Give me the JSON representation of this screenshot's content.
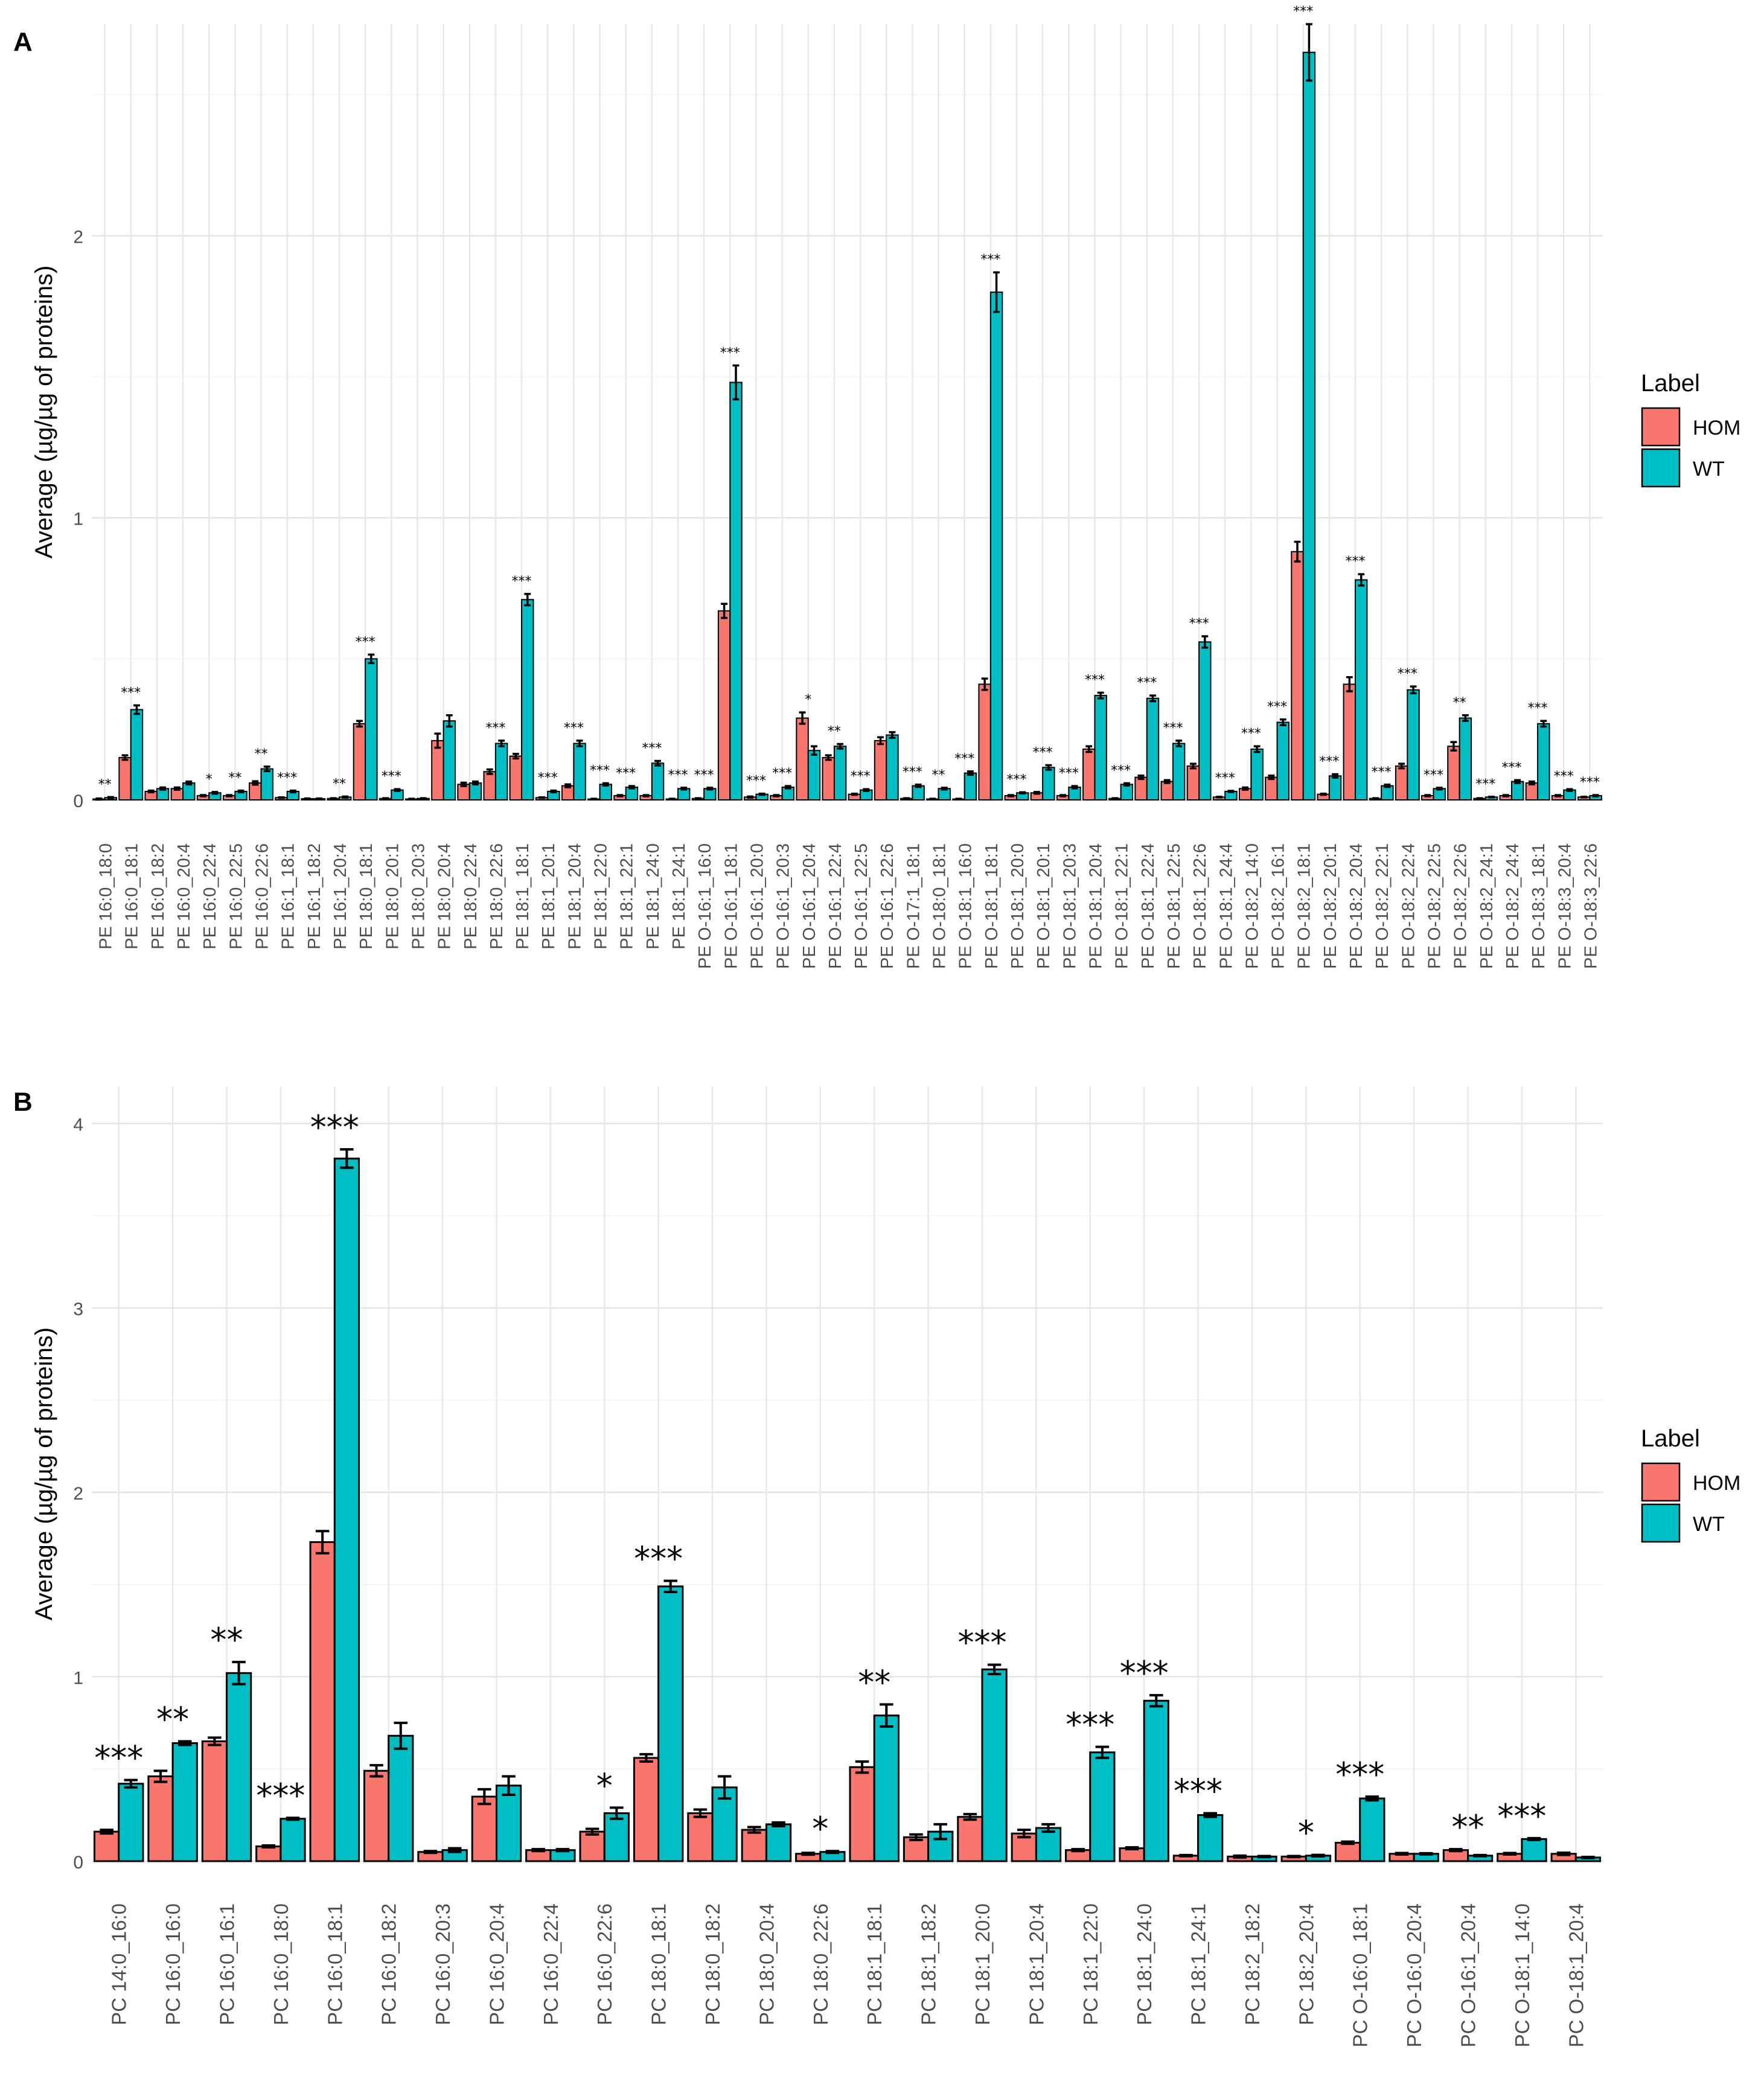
{
  "figure": {
    "panels": [
      "A",
      "B"
    ]
  },
  "chart_data": [
    {
      "type": "bar",
      "panel": "A",
      "ylabel": "Average (µg/µg of proteins)",
      "xlabel": "",
      "ylim": [
        0,
        2.75
      ],
      "y_ticks": [
        0,
        1,
        2
      ],
      "grid": true,
      "legend": {
        "title": "Label",
        "entries": [
          "HOM",
          "WT"
        ],
        "position": "right"
      },
      "colors": {
        "HOM": "#F8766D",
        "WT": "#00BFC4"
      },
      "categories": [
        "PE 16:0_18:0",
        "PE 16:0_18:1",
        "PE 16:0_18:2",
        "PE 16:0_20:4",
        "PE 16:0_22:4",
        "PE 16:0_22:5",
        "PE 16:0_22:6",
        "PE 16:1_18:1",
        "PE 16:1_18:2",
        "PE 16:1_20:4",
        "PE 18:0_18:1",
        "PE 18:0_20:1",
        "PE 18:0_20:3",
        "PE 18:0_20:4",
        "PE 18:0_22:4",
        "PE 18:0_22:6",
        "PE 18:1_18:1",
        "PE 18:1_20:1",
        "PE 18:1_20:4",
        "PE 18:1_22:0",
        "PE 18:1_22:1",
        "PE 18:1_24:0",
        "PE 18:1_24:1",
        "PE O-16:1_16:0",
        "PE O-16:1_18:1",
        "PE O-16:1_20:0",
        "PE O-16:1_20:3",
        "PE O-16:1_20:4",
        "PE O-16:1_22:4",
        "PE O-16:1_22:5",
        "PE O-16:1_22:6",
        "PE O-17:1_18:1",
        "PE O-18:0_18:1",
        "PE O-18:1_16:0",
        "PE O-18:1_18:1",
        "PE O-18:1_20:0",
        "PE O-18:1_20:1",
        "PE O-18:1_20:3",
        "PE O-18:1_20:4",
        "PE O-18:1_22:1",
        "PE O-18:1_22:4",
        "PE O-18:1_22:5",
        "PE O-18:1_22:6",
        "PE O-18:1_24:4",
        "PE O-18:2_14:0",
        "PE O-18:2_16:1",
        "PE O-18:2_18:1",
        "PE O-18:2_20:1",
        "PE O-18:2_20:4",
        "PE O-18:2_22:1",
        "PE O-18:2_22:4",
        "PE O-18:2_22:5",
        "PE O-18:2_22:6",
        "PE O-18:2_24:1",
        "PE O-18:2_24:4",
        "PE O-18:3_18:1",
        "PE O-18:3_20:4",
        "PE O-18:3_22:6"
      ],
      "series": [
        {
          "name": "HOM",
          "values": [
            0.003,
            0.15,
            0.03,
            0.04,
            0.015,
            0.015,
            0.06,
            0.008,
            0.004,
            0.005,
            0.27,
            0.005,
            0.003,
            0.21,
            0.055,
            0.1,
            0.155,
            0.008,
            0.05,
            0.003,
            0.015,
            0.015,
            0.003,
            0.005,
            0.67,
            0.01,
            0.015,
            0.29,
            0.15,
            0.02,
            0.21,
            0.005,
            0.003,
            0.003,
            0.41,
            0.015,
            0.025,
            0.015,
            0.18,
            0.005,
            0.08,
            0.065,
            0.12,
            0.01,
            0.04,
            0.08,
            0.88,
            0.02,
            0.41,
            0.005,
            0.12,
            0.015,
            0.19,
            0.005,
            0.015,
            0.06,
            0.015,
            0.01
          ],
          "errors": [
            0.002,
            0.008,
            0.003,
            0.004,
            0.002,
            0.002,
            0.006,
            0.001,
            0.001,
            0.001,
            0.01,
            0.001,
            0.001,
            0.025,
            0.006,
            0.008,
            0.008,
            0.001,
            0.005,
            0.001,
            0.002,
            0.002,
            0.001,
            0.001,
            0.025,
            0.002,
            0.002,
            0.02,
            0.008,
            0.002,
            0.012,
            0.001,
            0.001,
            0.001,
            0.02,
            0.002,
            0.003,
            0.002,
            0.01,
            0.001,
            0.006,
            0.005,
            0.008,
            0.001,
            0.004,
            0.006,
            0.035,
            0.002,
            0.025,
            0.001,
            0.008,
            0.002,
            0.015,
            0.001,
            0.002,
            0.005,
            0.002,
            0.001
          ]
        },
        {
          "name": "WT",
          "values": [
            0.008,
            0.32,
            0.04,
            0.06,
            0.025,
            0.03,
            0.11,
            0.03,
            0.004,
            0.01,
            0.5,
            0.035,
            0.005,
            0.28,
            0.06,
            0.2,
            0.71,
            0.03,
            0.2,
            0.055,
            0.045,
            0.13,
            0.04,
            0.04,
            1.48,
            0.02,
            0.045,
            0.175,
            0.19,
            0.035,
            0.23,
            0.05,
            0.04,
            0.095,
            1.8,
            0.025,
            0.115,
            0.045,
            0.37,
            0.055,
            0.36,
            0.2,
            0.56,
            0.03,
            0.18,
            0.275,
            2.65,
            0.085,
            0.78,
            0.05,
            0.39,
            0.04,
            0.29,
            0.01,
            0.065,
            0.27,
            0.035,
            0.015
          ],
          "errors": [
            0.002,
            0.015,
            0.004,
            0.005,
            0.003,
            0.003,
            0.008,
            0.003,
            0.001,
            0.002,
            0.015,
            0.003,
            0.001,
            0.02,
            0.005,
            0.01,
            0.02,
            0.003,
            0.01,
            0.004,
            0.004,
            0.008,
            0.003,
            0.003,
            0.06,
            0.002,
            0.004,
            0.015,
            0.008,
            0.003,
            0.01,
            0.004,
            0.003,
            0.006,
            0.07,
            0.002,
            0.008,
            0.004,
            0.01,
            0.004,
            0.01,
            0.01,
            0.02,
            0.002,
            0.01,
            0.01,
            0.1,
            0.006,
            0.02,
            0.004,
            0.012,
            0.003,
            0.01,
            0.001,
            0.005,
            0.01,
            0.003,
            0.002
          ]
        }
      ],
      "annotations": [
        "**",
        "***",
        "",
        "",
        "*",
        "**",
        "**",
        "***",
        "",
        "**",
        "***",
        "***",
        "",
        "",
        "",
        "***",
        "***",
        "***",
        "***",
        "***",
        "***",
        "***",
        "***",
        "***",
        "***",
        "***",
        "***",
        "*",
        "**",
        "***",
        "",
        "***",
        "**",
        "***",
        "***",
        "***",
        "***",
        "***",
        "***",
        "***",
        "***",
        "***",
        "***",
        "***",
        "***",
        "***",
        "***",
        "***",
        "***",
        "***",
        "***",
        "***",
        "**",
        "***",
        "***",
        "***",
        "***",
        "***"
      ]
    },
    {
      "type": "bar",
      "panel": "B",
      "ylabel": "Average (µg/µg of proteins)",
      "xlabel": "",
      "ylim": [
        0,
        4.2
      ],
      "y_ticks": [
        0,
        1,
        2,
        3,
        4
      ],
      "grid": true,
      "legend": {
        "title": "Label",
        "entries": [
          "HOM",
          "WT"
        ],
        "position": "right"
      },
      "colors": {
        "HOM": "#F8766D",
        "WT": "#00BFC4"
      },
      "categories": [
        "PC 14:0_16:0",
        "PC 16:0_16:0",
        "PC 16:0_16:1",
        "PC 16:0_18:0",
        "PC 16:0_18:1",
        "PC 16:0_18:2",
        "PC 16:0_20:3",
        "PC 16:0_20:4",
        "PC 16:0_22:4",
        "PC 16:0_22:6",
        "PC 18:0_18:1",
        "PC 18:0_18:2",
        "PC 18:0_20:4",
        "PC 18:0_22:6",
        "PC 18:1_18:1",
        "PC 18:1_18:2",
        "PC 18:1_20:0",
        "PC 18:1_20:4",
        "PC 18:1_22:0",
        "PC 18:1_24:0",
        "PC 18:1_24:1",
        "PC 18:2_18:2",
        "PC 18:2_20:4",
        "PC O-16:0_18:1",
        "PC O-16:0_20:4",
        "PC O-16:1_20:4",
        "PC O-18:1_14:0",
        "PC O-18:1_20:4"
      ],
      "series": [
        {
          "name": "HOM",
          "values": [
            0.16,
            0.46,
            0.65,
            0.08,
            1.73,
            0.49,
            0.05,
            0.35,
            0.06,
            0.16,
            0.56,
            0.26,
            0.17,
            0.04,
            0.51,
            0.13,
            0.24,
            0.15,
            0.06,
            0.07,
            0.03,
            0.025,
            0.025,
            0.1,
            0.04,
            0.06,
            0.04,
            0.04
          ],
          "errors": [
            0.01,
            0.03,
            0.02,
            0.005,
            0.06,
            0.03,
            0.005,
            0.04,
            0.005,
            0.015,
            0.02,
            0.02,
            0.015,
            0.005,
            0.03,
            0.015,
            0.015,
            0.02,
            0.005,
            0.005,
            0.003,
            0.005,
            0.003,
            0.006,
            0.004,
            0.005,
            0.004,
            0.006
          ]
        },
        {
          "name": "WT",
          "values": [
            0.42,
            0.64,
            1.02,
            0.23,
            3.81,
            0.68,
            0.06,
            0.41,
            0.06,
            0.26,
            1.49,
            0.4,
            0.2,
            0.05,
            0.79,
            0.16,
            1.04,
            0.18,
            0.59,
            0.87,
            0.25,
            0.025,
            0.03,
            0.34,
            0.04,
            0.03,
            0.12,
            0.02
          ],
          "errors": [
            0.02,
            0.01,
            0.06,
            0.005,
            0.05,
            0.07,
            0.01,
            0.05,
            0.005,
            0.03,
            0.03,
            0.06,
            0.01,
            0.005,
            0.06,
            0.04,
            0.025,
            0.02,
            0.03,
            0.03,
            0.01,
            0.003,
            0.004,
            0.01,
            0.003,
            0.003,
            0.005,
            0.003
          ]
        }
      ],
      "annotations": [
        "***",
        "**",
        "**",
        "***",
        "***",
        "",
        "",
        "",
        "",
        "*",
        "***",
        "",
        "",
        "*",
        "**",
        "",
        "***",
        "",
        "***",
        "***",
        "***",
        "",
        "*",
        "***",
        "",
        "**",
        "***",
        ""
      ]
    }
  ]
}
